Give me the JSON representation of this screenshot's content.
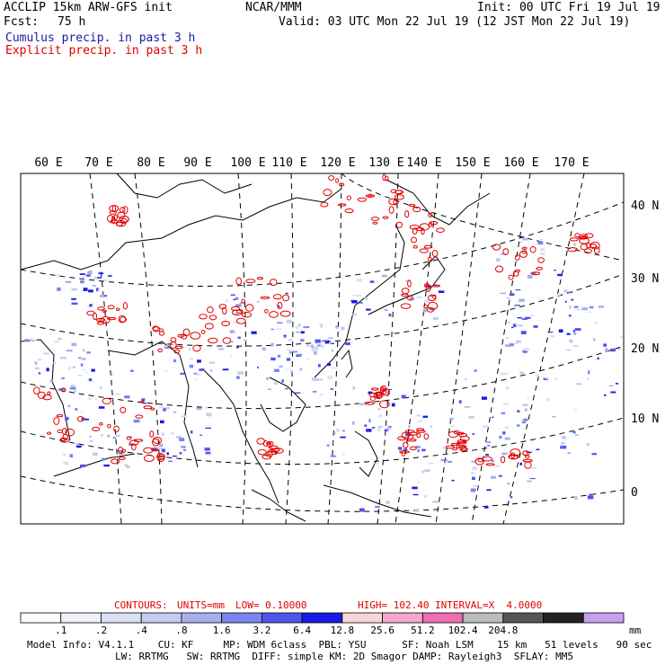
{
  "header": {
    "title": "ACCLIP 15km ARW-GFS init",
    "center": "NCAR/MMM",
    "init": "Init: 00 UTC Fri 19 Jul 19",
    "fcst_label": "Fcst:",
    "fcst_value": "75 h",
    "valid": "Valid: 03 UTC Mon 22 Jul 19 (12 JST Mon 22 Jul 19)",
    "legend_cumulus": "Cumulus precip. in past 3 h",
    "legend_explicit": "Explicit precip. in past 3 h"
  },
  "map": {
    "lon_labels": [
      "60 E",
      "70 E",
      "80 E",
      "90 E",
      "100 E",
      "110 E",
      "120 E",
      "130 E",
      "140 E",
      "150 E",
      "160 E",
      "170 E"
    ],
    "lat_labels": [
      "40 N",
      "30 N",
      "20 N",
      "10 N",
      "0"
    ]
  },
  "contours": {
    "label": "CONTOURS:",
    "units": "UNITS=mm",
    "low": "LOW= 0.10000",
    "high": "HIGH= 102.40",
    "interval": "INTERVAL=X  4.0000"
  },
  "colorbar": {
    "colors": [
      "#ffffff",
      "#eef0fa",
      "#dce0f5",
      "#c5ccf0",
      "#a8b0ec",
      "#7c84f0",
      "#5055ec",
      "#1a1ae8",
      "#f8d6d6",
      "#f4a8cc",
      "#ee6eb4",
      "#bcbcbc",
      "#555555",
      "#222222",
      "#c8a0f0"
    ],
    "labels": [
      ".1",
      ".2",
      ".4",
      ".8",
      "1.6",
      "3.2",
      "6.4",
      "12.8",
      "25.6",
      "51.2",
      "102.4",
      "204.8"
    ],
    "unit": "mm"
  },
  "model_info": {
    "line1": "Model Info: V4.1.1    CU: KF     MP: WDM 6class  PBL: YSU      SF: Noah LSM    15 km   51 levels   90 sec",
    "line2": "LW: RRTMG   SW: RRTMG  DIFF: simple KM: 2D Smagor DAMP: Rayleigh3  SFLAY: MM5"
  }
}
